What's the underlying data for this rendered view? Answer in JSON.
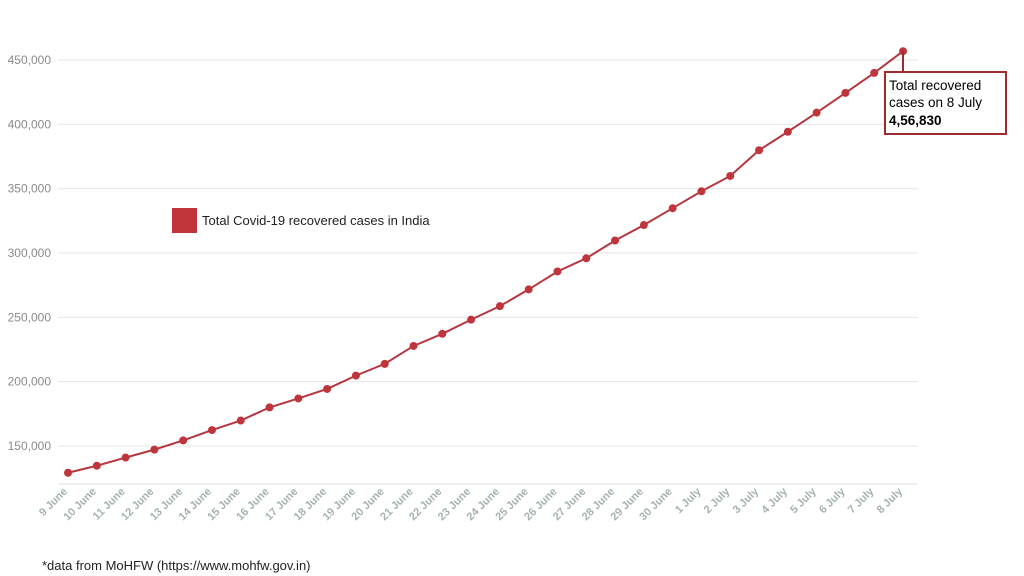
{
  "chart_data": {
    "type": "line",
    "categories": [
      "9 June",
      "10 June",
      "11 June",
      "12 June",
      "13 June",
      "14 June",
      "15 June",
      "16 June",
      "17 June",
      "18 June",
      "19 June",
      "20 June",
      "21 June",
      "22 June",
      "23 June",
      "24 June",
      "25 June",
      "26 June",
      "27 June",
      "28 June",
      "29 June",
      "30 June",
      "1 July",
      "2 July",
      "3 July",
      "4 July",
      "5 July",
      "6 July",
      "7 July",
      "8 July"
    ],
    "series": [
      {
        "name": "Total Covid-19 recovered cases in India",
        "values": [
          129215,
          134670,
          141029,
          147195,
          154330,
          162379,
          169798,
          180013,
          186935,
          194325,
          204711,
          213831,
          227756,
          237196,
          248190,
          258685,
          271697,
          285637,
          295881,
          309713,
          321723,
          334822,
          347979,
          359860,
          379892,
          394227,
          409083,
          424433,
          439948,
          456830
        ]
      }
    ],
    "ylim": [
      120000,
      460000
    ],
    "yticks": [
      150000,
      200000,
      250000,
      300000,
      350000,
      400000,
      450000
    ],
    "ytick_labels": [
      "150,000",
      "200,000",
      "250,000",
      "300,000",
      "350,000",
      "400,000",
      "450,000"
    ],
    "grid": true,
    "legend": "upper-left inside plot",
    "colors": {
      "series": "#b5363f",
      "marker": "#c0353c",
      "grid": "#e6e6e6",
      "callout_border": "#9d2b2f"
    },
    "annotation": {
      "lines": [
        "Total recovered",
        "cases on 8 July"
      ],
      "value": "4,56,830"
    }
  },
  "footnote": "*data from MoHFW (https://www.mohfw.gov.in)"
}
